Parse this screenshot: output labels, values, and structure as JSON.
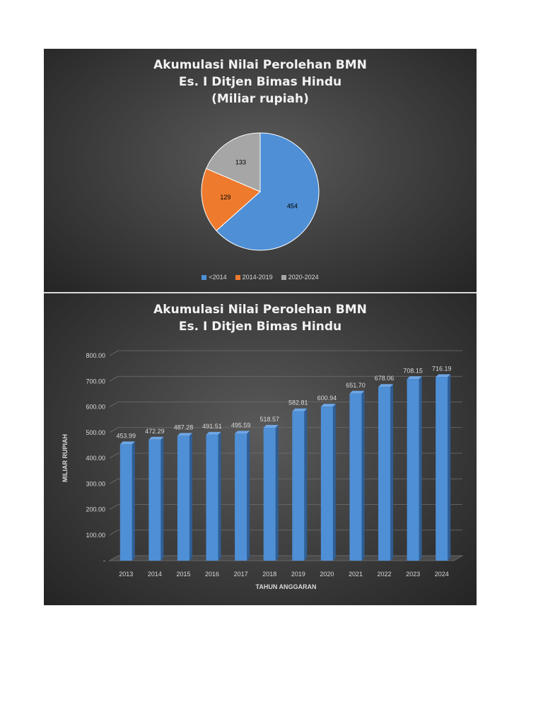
{
  "chart_data": [
    {
      "type": "pie",
      "title": [
        "Akumulasi Nilai Perolehan BMN",
        "Es. I Ditjen Bimas Hindu",
        "(Miliar rupiah)"
      ],
      "slices": [
        {
          "label": "<2014",
          "value": 454,
          "value_label": "454",
          "color": "#4e8fd6"
        },
        {
          "label": "2014-2019",
          "value": 129,
          "value_label": "129",
          "color": "#ee7a2e"
        },
        {
          "label": "2020-2024",
          "value": 133,
          "value_label": "133",
          "color": "#a6a6a6"
        }
      ],
      "legend_position": "bottom"
    },
    {
      "type": "bar",
      "title": [
        "Akumulasi Nilai Perolehan BMN",
        "Es. I Ditjen Bimas Hindu"
      ],
      "xlabel": "TAHUN ANGGARAN",
      "ylabel": "MILIAR RUPIAH",
      "categories": [
        "2013",
        "2014",
        "2015",
        "2016",
        "2017",
        "2018",
        "2019",
        "2020",
        "2021",
        "2022",
        "2023",
        "2024"
      ],
      "values": [
        453.99,
        472.29,
        487.28,
        491.51,
        495.59,
        518.57,
        582.81,
        600.94,
        651.7,
        678.06,
        708.15,
        716.19
      ],
      "value_labels": [
        "453.99",
        "472.29",
        "487.28",
        "491.51",
        "495.59",
        "518.57",
        "582.81",
        "600.94",
        "651.70",
        "678.06",
        "708.15",
        "716.19"
      ],
      "yticks": [
        "-",
        "100.00",
        "200.00",
        "300.00",
        "400.00",
        "500.00",
        "600.00",
        "700.00",
        "800.00"
      ],
      "ylim": [
        0,
        800
      ],
      "bar_color": "#4e8fd6",
      "grid": true
    }
  ]
}
